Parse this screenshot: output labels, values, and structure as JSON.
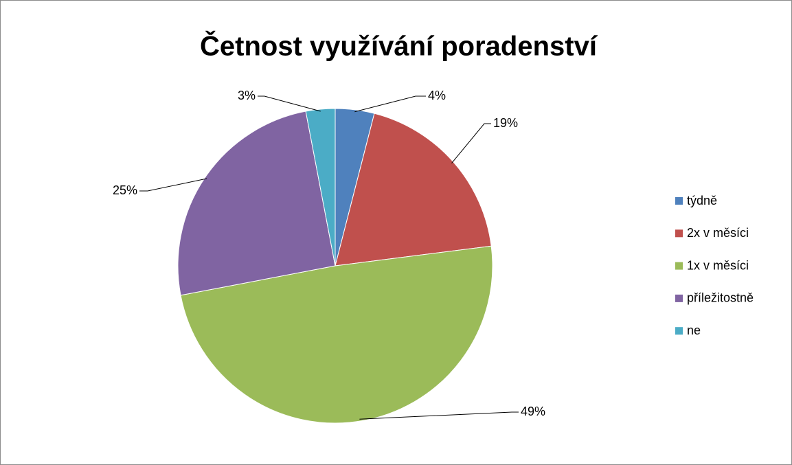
{
  "chart_data": {
    "type": "pie",
    "title": "Četnost využívání poradenství",
    "categories": [
      "týdně",
      "2x v měsíci",
      "1x v měsíci",
      "příležitostně",
      "ne"
    ],
    "values": [
      4,
      19,
      49,
      25,
      3
    ],
    "value_labels": [
      "4%",
      "19%",
      "49%",
      "25%",
      "3%"
    ],
    "colors": [
      "#4f81bd",
      "#c0504d",
      "#9bbb59",
      "#8064a2",
      "#4bacc6"
    ],
    "legend": "right"
  }
}
